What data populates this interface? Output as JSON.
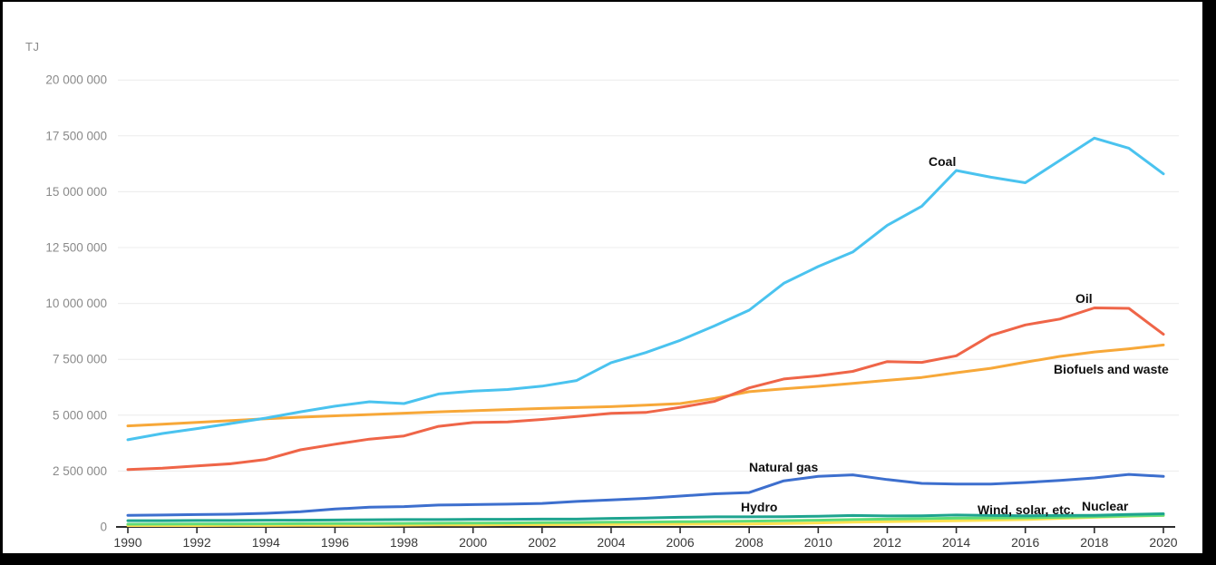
{
  "chart_data": {
    "type": "line",
    "title": "",
    "ylabel": "TJ",
    "xlabel": "",
    "grid": "horizontal",
    "legend": "inline-labels",
    "x": [
      1990,
      1991,
      1992,
      1993,
      1994,
      1995,
      1996,
      1997,
      1998,
      1999,
      2000,
      2001,
      2002,
      2003,
      2004,
      2005,
      2006,
      2007,
      2008,
      2009,
      2010,
      2011,
      2012,
      2013,
      2014,
      2015,
      2016,
      2017,
      2018,
      2019,
      2020
    ],
    "x_ticks": [
      1990,
      1992,
      1994,
      1996,
      1998,
      2000,
      2002,
      2004,
      2006,
      2008,
      2010,
      2012,
      2014,
      2016,
      2018,
      2020
    ],
    "x_tick_labels": [
      "1990",
      "1992",
      "1994",
      "1996",
      "1998",
      "2000",
      "2002",
      "2004",
      "2006",
      "2008",
      "2010",
      "2012",
      "2014",
      "2016",
      "2018",
      "2020"
    ],
    "y_ticks": [
      0,
      2500000,
      5000000,
      7500000,
      10000000,
      12500000,
      15000000,
      17500000,
      20000000
    ],
    "y_tick_labels": [
      "0",
      "2 500 000",
      "5 000 000",
      "7 500 000",
      "10 000 000",
      "12 500 000",
      "15 000 000",
      "17 500 000",
      "20 000 000"
    ],
    "ylim": [
      0,
      20000000
    ],
    "xlim": [
      1990,
      2020
    ],
    "series": [
      {
        "name": "Coal",
        "color": "#4ac3ef",
        "values": [
          3900000,
          4180000,
          4400000,
          4630000,
          4870000,
          5150000,
          5400000,
          5600000,
          5520000,
          5950000,
          6080000,
          6150000,
          6300000,
          6550000,
          7350000,
          7800000,
          8350000,
          9000000,
          9700000,
          10900000,
          11650000,
          12300000,
          13500000,
          14350000,
          15950000,
          15650000,
          15400000,
          16400000,
          17400000,
          16950000,
          15800000
        ]
      },
      {
        "name": "Oil",
        "color": "#ef6548",
        "values": [
          2570000,
          2630000,
          2730000,
          2830000,
          3020000,
          3450000,
          3700000,
          3930000,
          4070000,
          4500000,
          4670000,
          4700000,
          4810000,
          4940000,
          5080000,
          5120000,
          5350000,
          5620000,
          6220000,
          6620000,
          6760000,
          6960000,
          7400000,
          7360000,
          7660000,
          8570000,
          9040000,
          9300000,
          9800000,
          9780000,
          8620000
        ]
      },
      {
        "name": "Biofuels and waste",
        "color": "#f7a839",
        "values": [
          4520000,
          4600000,
          4680000,
          4760000,
          4840000,
          4910000,
          4970000,
          5030000,
          5090000,
          5150000,
          5200000,
          5250000,
          5300000,
          5340000,
          5380000,
          5450000,
          5520000,
          5750000,
          6050000,
          6180000,
          6290000,
          6420000,
          6560000,
          6690000,
          6900000,
          7100000,
          7370000,
          7630000,
          7830000,
          7970000,
          8140000
        ]
      },
      {
        "name": "Natural gas",
        "color": "#3d6fce",
        "values": [
          520000,
          530000,
          550000,
          570000,
          610000,
          680000,
          800000,
          880000,
          910000,
          980000,
          1000000,
          1020000,
          1050000,
          1140000,
          1210000,
          1280000,
          1380000,
          1480000,
          1540000,
          2060000,
          2260000,
          2330000,
          2120000,
          1950000,
          1920000,
          1920000,
          1990000,
          2080000,
          2190000,
          2350000,
          2260000
        ]
      },
      {
        "name": "Hydro",
        "color": "#1ea48f",
        "values": [
          280000,
          280000,
          290000,
          290000,
          300000,
          300000,
          310000,
          320000,
          330000,
          330000,
          340000,
          340000,
          350000,
          350000,
          380000,
          400000,
          430000,
          450000,
          450000,
          460000,
          480000,
          510000,
          490000,
          500000,
          530000,
          510000,
          500000,
          510000,
          520000,
          560000,
          590000
        ]
      },
      {
        "name": "Wind, solar, etc.",
        "color": "#5fdc78",
        "values": [
          120000,
          125000,
          130000,
          135000,
          140000,
          145000,
          150000,
          155000,
          160000,
          165000,
          175000,
          180000,
          190000,
          200000,
          210000,
          220000,
          230000,
          245000,
          260000,
          280000,
          300000,
          330000,
          350000,
          370000,
          390000,
          400000,
          410000,
          430000,
          460000,
          490000,
          520000
        ]
      },
      {
        "name": "Nuclear",
        "color": "#ffe14f",
        "values": [
          60000,
          60000,
          60000,
          65000,
          65000,
          70000,
          70000,
          75000,
          80000,
          90000,
          95000,
          100000,
          100000,
          105000,
          110000,
          120000,
          120000,
          130000,
          130000,
          150000,
          180000,
          210000,
          230000,
          250000,
          270000,
          300000,
          330000,
          380000,
          430000,
          480000,
          510000
        ]
      }
    ]
  }
}
